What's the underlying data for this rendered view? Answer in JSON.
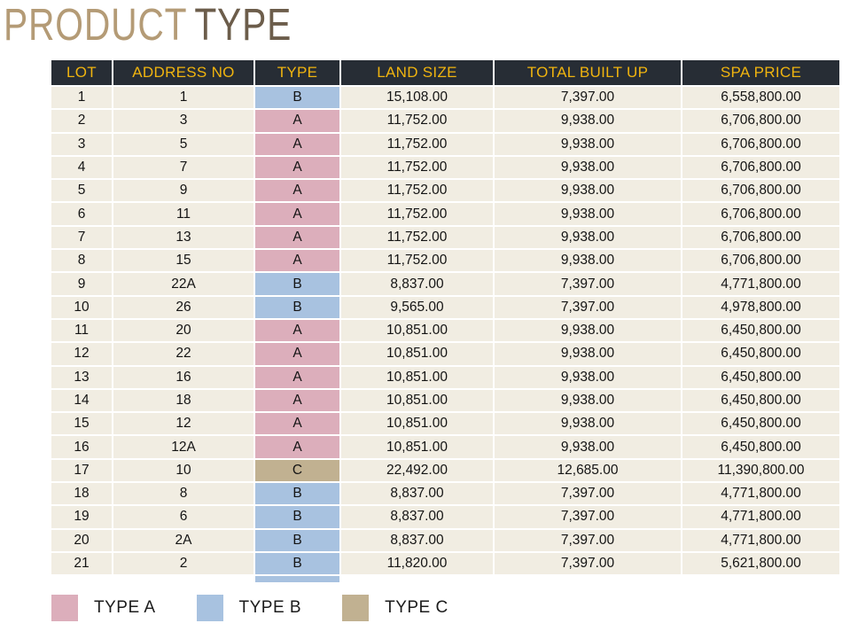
{
  "title": {
    "word1": "PRODUCT",
    "word2": "TYPE"
  },
  "chart_data": {
    "type": "table",
    "title": "PRODUCT TYPE",
    "columns": [
      "LOT",
      "ADDRESS NO",
      "TYPE",
      "LAND SIZE",
      "TOTAL BUILT UP",
      "SPA PRICE"
    ],
    "rows": [
      [
        "1",
        "1",
        "B",
        "15,108.00",
        "7,397.00",
        "6,558,800.00"
      ],
      [
        "2",
        "3",
        "A",
        "11,752.00",
        "9,938.00",
        "6,706,800.00"
      ],
      [
        "3",
        "5",
        "A",
        "11,752.00",
        "9,938.00",
        "6,706,800.00"
      ],
      [
        "4",
        "7",
        "A",
        "11,752.00",
        "9,938.00",
        "6,706,800.00"
      ],
      [
        "5",
        "9",
        "A",
        "11,752.00",
        "9,938.00",
        "6,706,800.00"
      ],
      [
        "6",
        "11",
        "A",
        "11,752.00",
        "9,938.00",
        "6,706,800.00"
      ],
      [
        "7",
        "13",
        "A",
        "11,752.00",
        "9,938.00",
        "6,706,800.00"
      ],
      [
        "8",
        "15",
        "A",
        "11,752.00",
        "9,938.00",
        "6,706,800.00"
      ],
      [
        "9",
        "22A",
        "B",
        "8,837.00",
        "7,397.00",
        "4,771,800.00"
      ],
      [
        "10",
        "26",
        "B",
        "9,565.00",
        "7,397.00",
        "4,978,800.00"
      ],
      [
        "11",
        "20",
        "A",
        "10,851.00",
        "9,938.00",
        "6,450,800.00"
      ],
      [
        "12",
        "22",
        "A",
        "10,851.00",
        "9,938.00",
        "6,450,800.00"
      ],
      [
        "13",
        "16",
        "A",
        "10,851.00",
        "9,938.00",
        "6,450,800.00"
      ],
      [
        "14",
        "18",
        "A",
        "10,851.00",
        "9,938.00",
        "6,450,800.00"
      ],
      [
        "15",
        "12",
        "A",
        "10,851.00",
        "9,938.00",
        "6,450,800.00"
      ],
      [
        "16",
        "12A",
        "A",
        "10,851.00",
        "9,938.00",
        "6,450,800.00"
      ],
      [
        "17",
        "10",
        "C",
        "22,492.00",
        "12,685.00",
        "11,390,800.00"
      ],
      [
        "18",
        "8",
        "B",
        "8,837.00",
        "7,397.00",
        "4,771,800.00"
      ],
      [
        "19",
        "6",
        "B",
        "8,837.00",
        "7,397.00",
        "4,771,800.00"
      ],
      [
        "20",
        "2A",
        "B",
        "8,837.00",
        "7,397.00",
        "4,771,800.00"
      ],
      [
        "21",
        "2",
        "B",
        "11,820.00",
        "7,397.00",
        "5,621,800.00"
      ]
    ],
    "legend_position": "bottom-left"
  },
  "legend": [
    {
      "label": "TYPE A",
      "color": "#dcaebb"
    },
    {
      "label": "TYPE B",
      "color": "#a8c2e0"
    },
    {
      "label": "TYPE C",
      "color": "#c1b191"
    }
  ],
  "colors": {
    "header_bg": "#272d35",
    "header_text": "#f0b40f",
    "row_bg": "#f1ede2",
    "type_a": "#dcaebb",
    "type_b": "#a8c2e0",
    "type_c": "#c1b191",
    "title_light": "#b49b76",
    "title_dark": "#6c5d4b"
  }
}
